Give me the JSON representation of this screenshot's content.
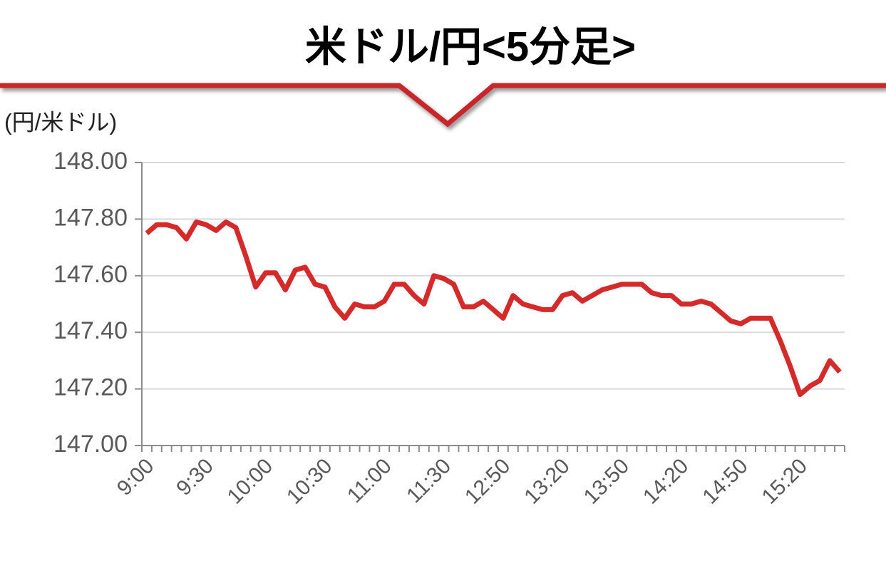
{
  "chart_data": {
    "type": "line",
    "title": "米ドル/円<5分足>",
    "y_axis_label": "(円/米ドル)",
    "categories": [
      "9:00",
      null,
      null,
      null,
      null,
      null,
      "9:30",
      null,
      null,
      null,
      null,
      null,
      "10:00",
      null,
      null,
      null,
      null,
      null,
      "10:30",
      null,
      null,
      null,
      null,
      null,
      "11:00",
      null,
      null,
      null,
      null,
      null,
      "11:30",
      null,
      null,
      null,
      null,
      null,
      "12:50",
      null,
      null,
      null,
      null,
      null,
      "13:20",
      null,
      null,
      null,
      null,
      null,
      "13:50",
      null,
      null,
      null,
      null,
      null,
      "14:20",
      null,
      null,
      null,
      null,
      null,
      "14:50",
      null,
      null,
      null,
      null,
      null,
      "15:20",
      null,
      null,
      null,
      null
    ],
    "values": [
      147.75,
      147.78,
      147.78,
      147.77,
      147.73,
      147.79,
      147.78,
      147.76,
      147.79,
      147.77,
      147.67,
      147.56,
      147.61,
      147.61,
      147.55,
      147.62,
      147.63,
      147.57,
      147.56,
      147.49,
      147.45,
      147.5,
      147.49,
      147.49,
      147.51,
      147.57,
      147.57,
      147.53,
      147.5,
      147.6,
      147.59,
      147.57,
      147.49,
      147.49,
      147.51,
      147.48,
      147.45,
      147.53,
      147.5,
      147.49,
      147.48,
      147.48,
      147.53,
      147.54,
      147.51,
      147.53,
      147.55,
      147.56,
      147.57,
      147.57,
      147.57,
      147.54,
      147.53,
      147.53,
      147.5,
      147.5,
      147.51,
      147.5,
      147.47,
      147.44,
      147.43,
      147.45,
      147.45,
      147.45,
      147.37,
      147.28,
      147.18,
      147.21,
      147.23,
      147.3,
      147.26
    ],
    "color": "#d42a2a",
    "ylim": [
      147,
      148
    ],
    "yticks": [
      {
        "value": 147,
        "label": "147.00"
      },
      {
        "value": 147.2,
        "label": "147.20"
      },
      {
        "value": 147.4,
        "label": "147.40"
      },
      {
        "value": 147.6,
        "label": "147.60"
      },
      {
        "value": 147.8,
        "label": "147.80"
      },
      {
        "value": 148,
        "label": "148.00"
      }
    ],
    "grid": true
  }
}
